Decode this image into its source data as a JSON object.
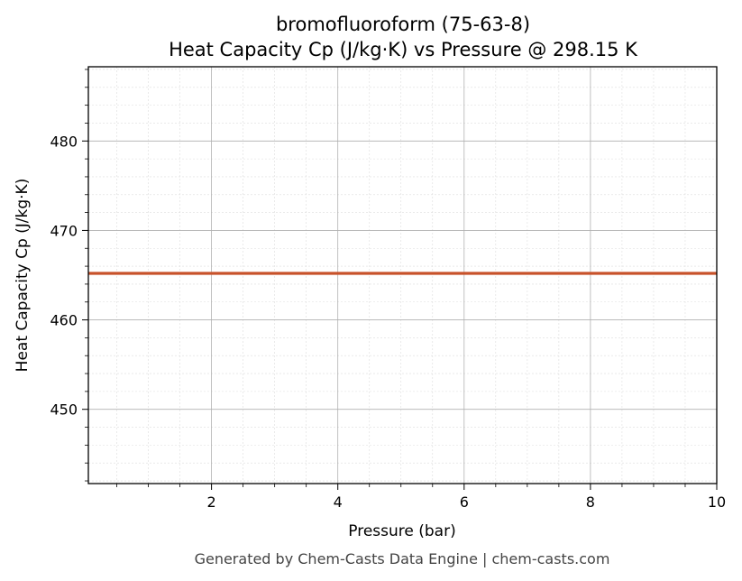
{
  "chart_data": {
    "type": "line",
    "title": "bromofluoroform (75-63-8)",
    "subtitle": "Heat Capacity Cp (J/kg·K) vs Pressure @ 298.15 K",
    "xlabel": "Pressure (bar)",
    "ylabel": "Heat Capacity Cp (J/kg·K)",
    "xlim": [
      0.05,
      10
    ],
    "ylim": [
      441.7,
      488.3
    ],
    "x_ticks": [
      2,
      4,
      6,
      8,
      10
    ],
    "x_tick_labels": [
      "2",
      "4",
      "6",
      "8",
      "10"
    ],
    "y_ticks": [
      450,
      460,
      470,
      480
    ],
    "y_tick_labels": [
      "450",
      "460",
      "470",
      "480"
    ],
    "grid": true,
    "minor_grid": true,
    "series": [
      {
        "x": [
          0.05,
          1,
          2,
          3,
          4,
          5,
          6,
          7,
          8,
          9,
          10
        ],
        "y": [
          465.2,
          465.2,
          465.2,
          465.2,
          465.2,
          465.2,
          465.2,
          465.2,
          465.2,
          465.2,
          465.2
        ],
        "color": "#c8522a"
      }
    ]
  },
  "footer": "Generated by Chem-Casts Data Engine | chem-casts.com"
}
